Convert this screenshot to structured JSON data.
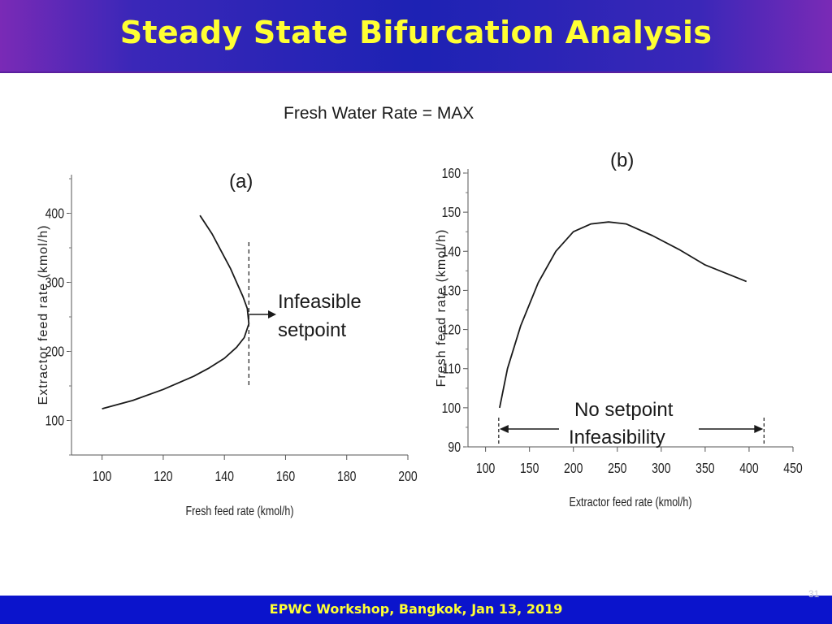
{
  "header": {
    "title": "Steady State Bifurcation Analysis"
  },
  "subtitle": "Fresh Water Rate = MAX",
  "footer": {
    "text": "EPWC Workshop, Bangkok, Jan 13, 2019",
    "page_number": "31"
  },
  "colors": {
    "title_text": "#ffff33",
    "header_bg": "#1d22b4",
    "footer_bg": "#0b14cc"
  },
  "chart_data": [
    {
      "panel_label": "(a)",
      "type": "line",
      "xlabel": "Fresh feed rate (kmol/h)",
      "ylabel": "Extractor feed rate (kmol/h)",
      "xlim": [
        90,
        200
      ],
      "ylim": [
        50,
        450
      ],
      "x_ticks": [
        100,
        120,
        140,
        160,
        180,
        200
      ],
      "y_ticks": [
        100,
        200,
        300,
        400
      ],
      "series": [
        {
          "x": [
            100,
            110,
            120,
            130,
            135,
            140,
            144,
            146.5,
            148,
            147.5,
            146,
            144,
            142,
            139,
            136,
            132
          ],
          "y": [
            117,
            129,
            145,
            164,
            176,
            190,
            206,
            220,
            240,
            262,
            280,
            300,
            320,
            345,
            370,
            397
          ]
        }
      ],
      "vertical_marker_x": 148,
      "annotation": "Infeasible setpoint",
      "annotation_lines": [
        "Infeasible",
        "setpoint"
      ]
    },
    {
      "panel_label": "(b)",
      "type": "line",
      "xlabel": "Extractor feed rate (kmol/h)",
      "ylabel": "Fresh feed rate (kmol/h)",
      "xlim": [
        80,
        450
      ],
      "ylim": [
        90,
        160
      ],
      "x_ticks": [
        100,
        150,
        200,
        250,
        300,
        350,
        400,
        450
      ],
      "y_ticks": [
        90,
        100,
        110,
        120,
        130,
        140,
        150,
        160
      ],
      "series": [
        {
          "x": [
            116,
            125,
            140,
            160,
            180,
            200,
            220,
            240,
            260,
            290,
            320,
            350,
            380,
            397
          ],
          "y": [
            100,
            110,
            121,
            132,
            140,
            145,
            147,
            147.5,
            147,
            144,
            140.5,
            136.5,
            133.8,
            132.3
          ]
        }
      ],
      "markers_x": [
        115,
        417
      ],
      "annotation": [
        "No setpoint",
        "Infeasibility"
      ]
    }
  ]
}
